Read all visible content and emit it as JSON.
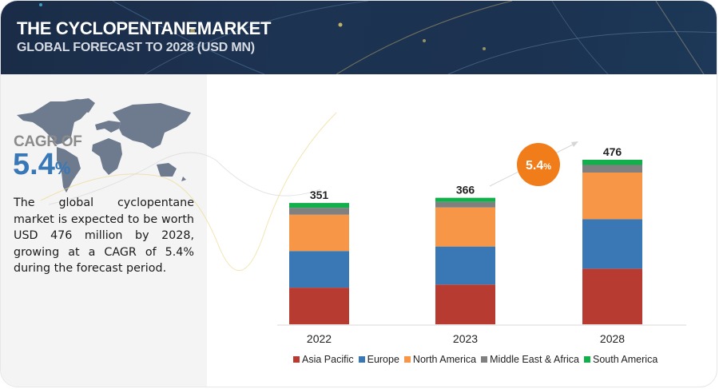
{
  "header": {
    "title": "THE CYCLOPENTANEMARKET",
    "subtitle": "GLOBAL FORECAST TO 2028 (USD MN)"
  },
  "left_panel": {
    "map_icon": "world-map",
    "cagr_label": "CAGR OF",
    "cagr_number": "5.4",
    "cagr_percent": "%",
    "description": "The global cyclopentane market is expected to be worth USD 476 million by 2028, growing at a CAGR of 5.4% during the forecast period."
  },
  "badge": {
    "number": "5.4",
    "percent": "%",
    "color": "#f07d1a"
  },
  "chart_data": {
    "type": "bar",
    "stacked": true,
    "title": "The Cyclopentane Market Global Forecast to 2028 (USD MN)",
    "xlabel": "",
    "ylabel": "",
    "categories": [
      "2022",
      "2023",
      "2028"
    ],
    "totals": [
      "351",
      "366",
      "476"
    ],
    "series": [
      {
        "name": "Asia Pacific",
        "color": "#b83b32",
        "values": [
          106,
          115,
          161
        ]
      },
      {
        "name": "Europe",
        "color": "#3a77b5",
        "values": [
          106,
          110,
          143
        ]
      },
      {
        "name": "North America",
        "color": "#f79646",
        "values": [
          105,
          113,
          135
        ]
      },
      {
        "name": "Middle East & Africa",
        "color": "#808080",
        "values": [
          20,
          16,
          22
        ]
      },
      {
        "name": "South America",
        "color": "#12b04b",
        "values": [
          14,
          12,
          15
        ]
      }
    ],
    "ylim": [
      0,
      476
    ],
    "grid": false,
    "legend_position": "bottom",
    "annotation": "5.4% CAGR"
  }
}
